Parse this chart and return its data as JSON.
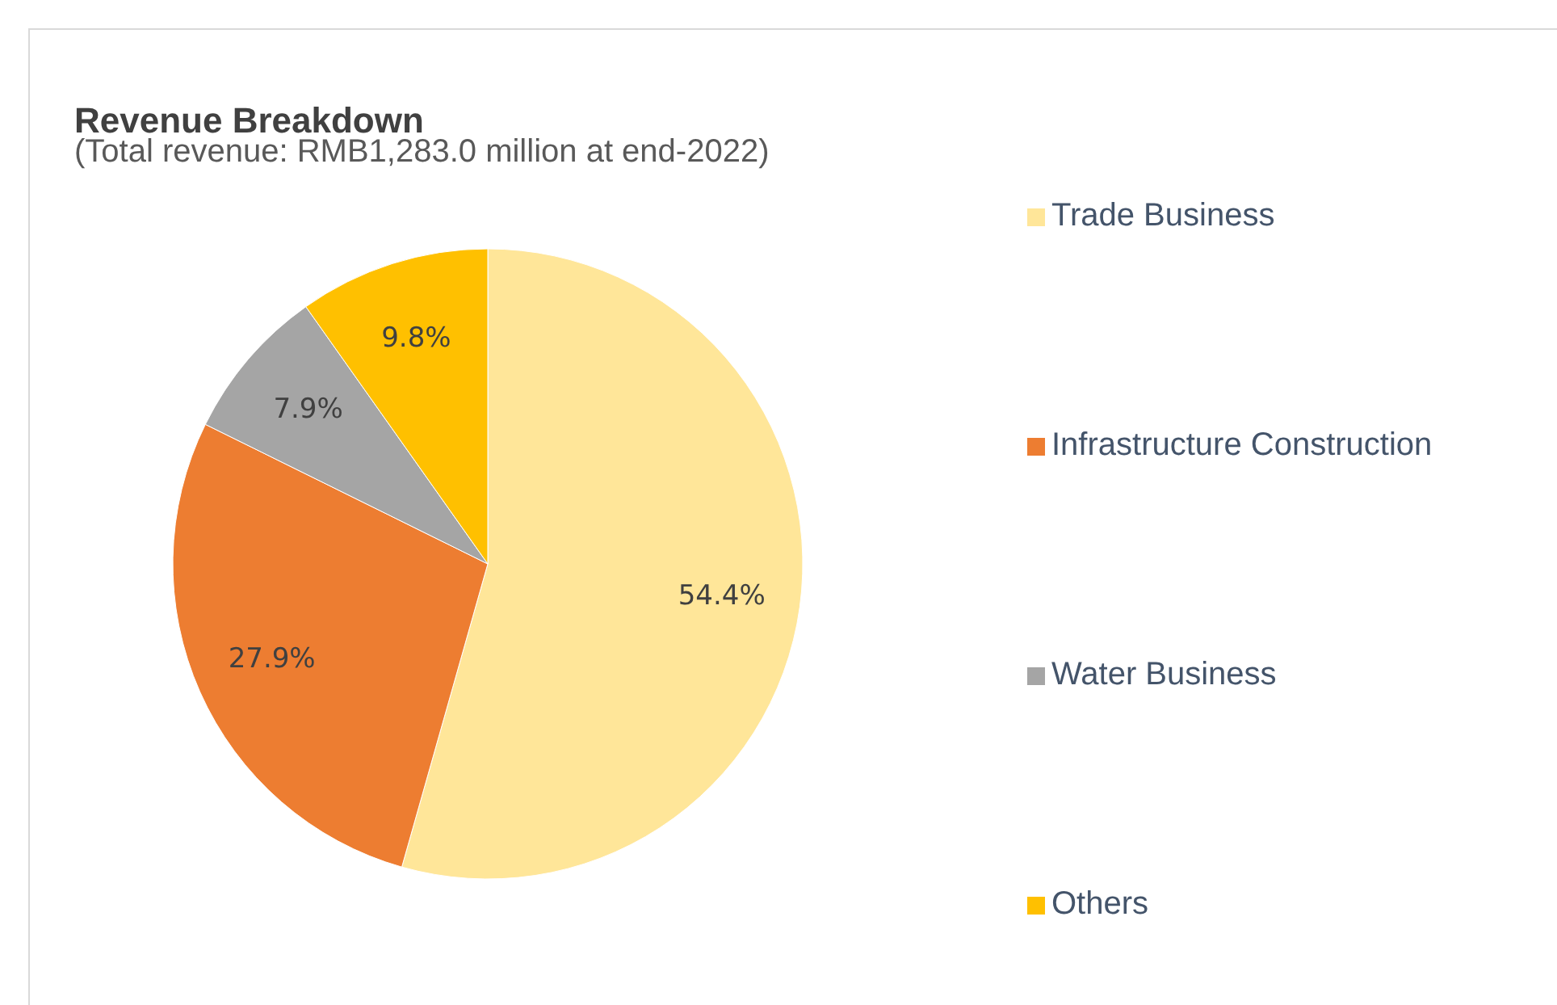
{
  "chart_data": {
    "type": "pie",
    "title": "Revenue Breakdown",
    "subtitle": "(Total revenue: RMB1,283.0 million at end-2022)",
    "categories": [
      "Trade Business",
      "Infrastructure Construction",
      "Water Business",
      "Others"
    ],
    "values": [
      54.4,
      27.9,
      7.9,
      9.8
    ],
    "colors": [
      "#ffe699",
      "#ed7d31",
      "#a5a5a5",
      "#ffc000"
    ],
    "value_labels": [
      "54.4%",
      "27.9%",
      "7.9%",
      "9.8%"
    ],
    "legend": "right"
  }
}
